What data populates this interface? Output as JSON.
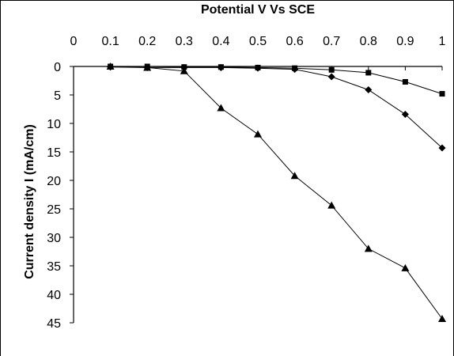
{
  "chart_data": {
    "type": "line",
    "title": "",
    "xlabel": "Potential V Vs SCE",
    "ylabel": "Current density I (mA/cm)",
    "x_ticks": [
      "0",
      "0.1",
      "0.2",
      "0.3",
      "0.4",
      "0.5",
      "0.6",
      "0.7",
      "0.8",
      "0.9",
      "1"
    ],
    "y_ticks": [
      "0",
      "5",
      "10",
      "15",
      "20",
      "25",
      "30",
      "35",
      "40",
      "45"
    ],
    "xlim": [
      0,
      1
    ],
    "ylim": [
      0,
      45
    ],
    "y_inverted": true,
    "x_axis_position": "top",
    "grid": false,
    "legend": "none",
    "series": [
      {
        "marker": "diamond",
        "color": "#000000",
        "x": [
          0.1,
          0.2,
          0.3,
          0.4,
          0.5,
          0.6,
          0.7,
          0.8,
          0.9,
          1.0
        ],
        "y": [
          0.1,
          0.2,
          0.2,
          0.2,
          0.3,
          0.5,
          1.8,
          4.1,
          8.4,
          14.3
        ]
      },
      {
        "marker": "square",
        "color": "#000000",
        "x": [
          0.1,
          0.2,
          0.3,
          0.4,
          0.5,
          0.6,
          0.7,
          0.8,
          0.9,
          1.0
        ],
        "y": [
          0.0,
          0.0,
          0.1,
          0.1,
          0.2,
          0.3,
          0.6,
          1.1,
          2.7,
          4.8
        ]
      },
      {
        "marker": "triangle",
        "color": "#000000",
        "x": [
          0.1,
          0.2,
          0.3,
          0.4,
          0.5,
          0.6,
          0.7,
          0.8,
          0.9,
          1.0
        ],
        "y": [
          0.0,
          0.2,
          0.8,
          7.3,
          11.9,
          19.2,
          24.4,
          32.0,
          35.4,
          44.3
        ]
      }
    ]
  }
}
